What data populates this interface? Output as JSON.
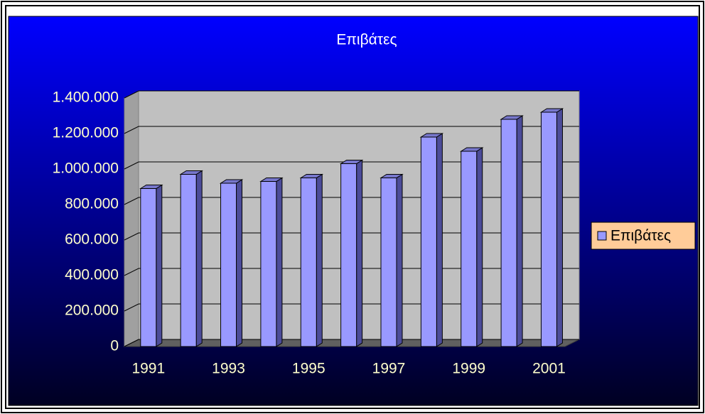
{
  "chart_data": {
    "type": "bar3d",
    "title": "Επιβάτες",
    "categories": [
      "1991",
      null,
      "1993",
      null,
      "1995",
      null,
      "1997",
      null,
      "1999",
      null,
      "2001"
    ],
    "series": [
      {
        "name": "Επιβάτες",
        "color": "#9999ff",
        "values": [
          890000,
          970000,
          920000,
          930000,
          950000,
          1030000,
          950000,
          1180000,
          1100000,
          1280000,
          1320000
        ]
      }
    ],
    "ylim": [
      0,
      1400000
    ],
    "yticks": [
      0,
      {
        "value": 200000,
        "label": "200.000"
      },
      {
        "value": 400000,
        "label": "400.000"
      },
      {
        "value": 600000,
        "label": "600.000"
      },
      {
        "value": 800000,
        "label": "800.000"
      },
      {
        "value": 1000000,
        "label": "1.000.000"
      },
      {
        "value": 1200000,
        "label": "1.200.000"
      },
      {
        "value": 1400000,
        "label": "1.400.000"
      }
    ],
    "grid": true,
    "legend": "right"
  }
}
